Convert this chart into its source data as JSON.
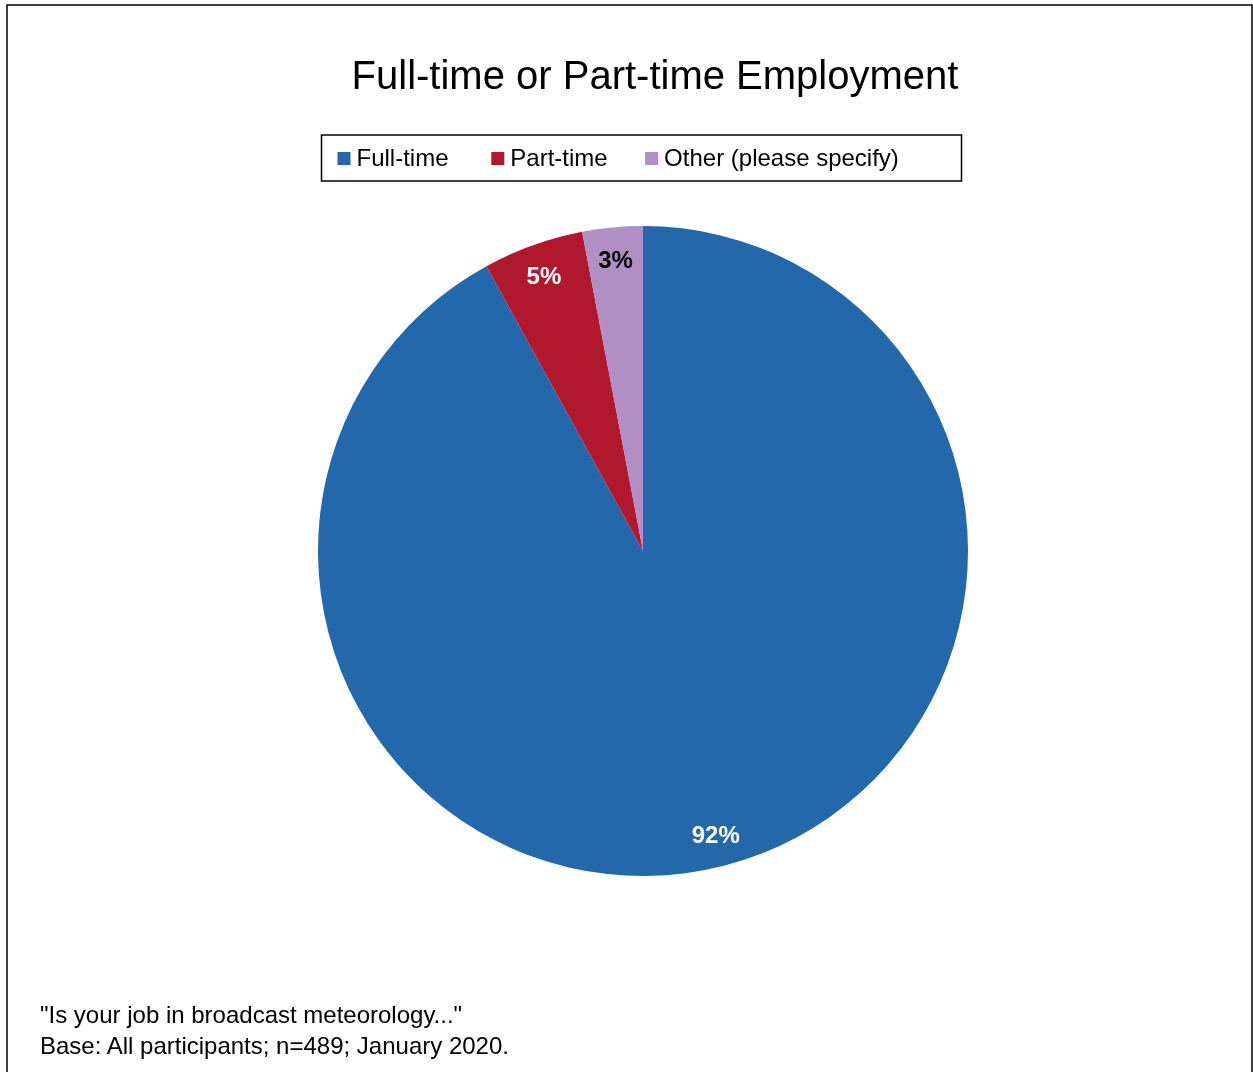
{
  "chart_data": {
    "type": "pie",
    "title": "Full-time or Part-time Employment",
    "categories": [
      "Full-time",
      "Part-time",
      "Other (please specify)"
    ],
    "values": [
      92,
      5,
      3
    ],
    "colors": [
      "#2368ab",
      "#b0192d",
      "#b08fc5"
    ],
    "value_labels": [
      "92%",
      "5%",
      "3%"
    ],
    "legend": "top",
    "annotations": [
      "\"Is your job in broadcast meteorology...\"",
      "Base: All participants; n=489; January 2020."
    ]
  }
}
